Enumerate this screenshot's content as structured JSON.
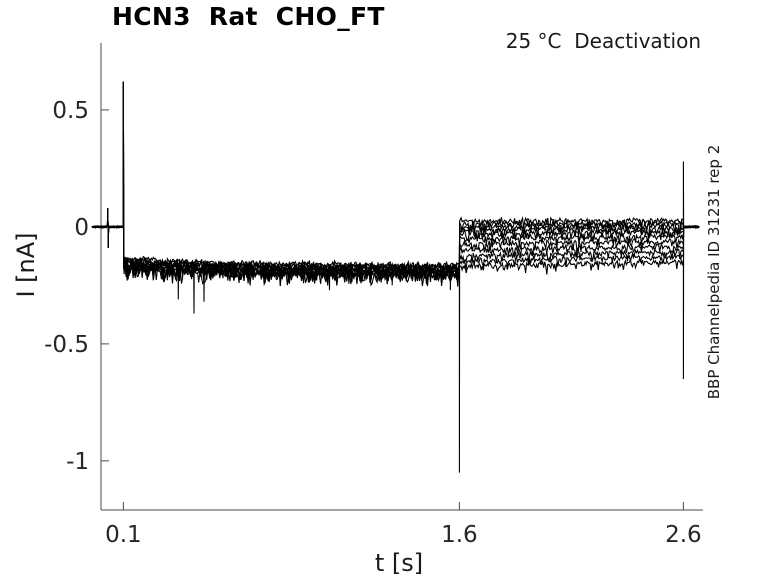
{
  "figure": {
    "title": "HCN3  Rat  CHO_FT",
    "subtitle": "25 °C  Deactivation",
    "xlabel": "t [s]",
    "ylabel": "I [nA]",
    "side_note": "BBP Channelpedia ID 31231 rep 2"
  },
  "colors": {
    "background": "#ffffff",
    "trace": "#000000",
    "axis": "#4a4a4a",
    "tick_label": "#262626",
    "text": "#1a1a1a"
  },
  "chart_data": {
    "type": "line",
    "title": "HCN3 Rat CHO_FT",
    "subtitle": "25 °C Deactivation",
    "xlabel": "t [s]",
    "ylabel": "I [nA]",
    "side_note": "BBP Channelpedia ID 31231 rep 2",
    "grid": false,
    "legend": null,
    "xlim": [
      0,
      2.6875
    ],
    "ylim": [
      -1.21,
      0.786
    ],
    "x_ticks": [
      0.1,
      1.6,
      2.6
    ],
    "y_ticks": [
      0.5,
      0,
      -0.5,
      -1
    ],
    "n_sweeps": 11,
    "protocol": {
      "trace_start_s": -0.04,
      "step_on_s": 0.1,
      "step_off_s": 1.6,
      "end_s": 2.6,
      "trace_end_s": 2.672,
      "baseline_nA": 0,
      "step_level_start_nA": -0.155,
      "step_level_end_nA": -0.185,
      "onset_spike_peak_nA": 0.62,
      "step_off_spike_nA": -1.05,
      "end_spike_up_nA": 0.28,
      "end_spike_down_nA": -0.65,
      "pre_artifact_s": 0.03,
      "pre_artifact_up_nA": 0.08,
      "pre_artifact_down_nA": -0.09
    },
    "tail_levels_start_nA": [
      0.025,
      0.012,
      0.0,
      -0.012,
      -0.028,
      -0.05,
      -0.075,
      -0.1,
      -0.125,
      -0.148,
      -0.17
    ],
    "tail_levels_end_nA": [
      0.028,
      0.018,
      0.008,
      -0.004,
      -0.018,
      -0.036,
      -0.056,
      -0.076,
      -0.098,
      -0.118,
      -0.14
    ],
    "noise_sd_nA": {
      "baseline": 0.004,
      "step": 0.011,
      "tail": 0.012
    },
    "artifact_spikes": [
      {
        "t": 0.345,
        "v": -0.31
      },
      {
        "t": 0.415,
        "v": -0.37
      },
      {
        "t": 0.46,
        "v": -0.32
      },
      {
        "t": 0.8,
        "v": -0.25
      },
      {
        "t": 1.02,
        "v": -0.27
      },
      {
        "t": 1.3,
        "v": -0.25
      },
      {
        "t": 1.56,
        "v": -0.27
      }
    ]
  }
}
